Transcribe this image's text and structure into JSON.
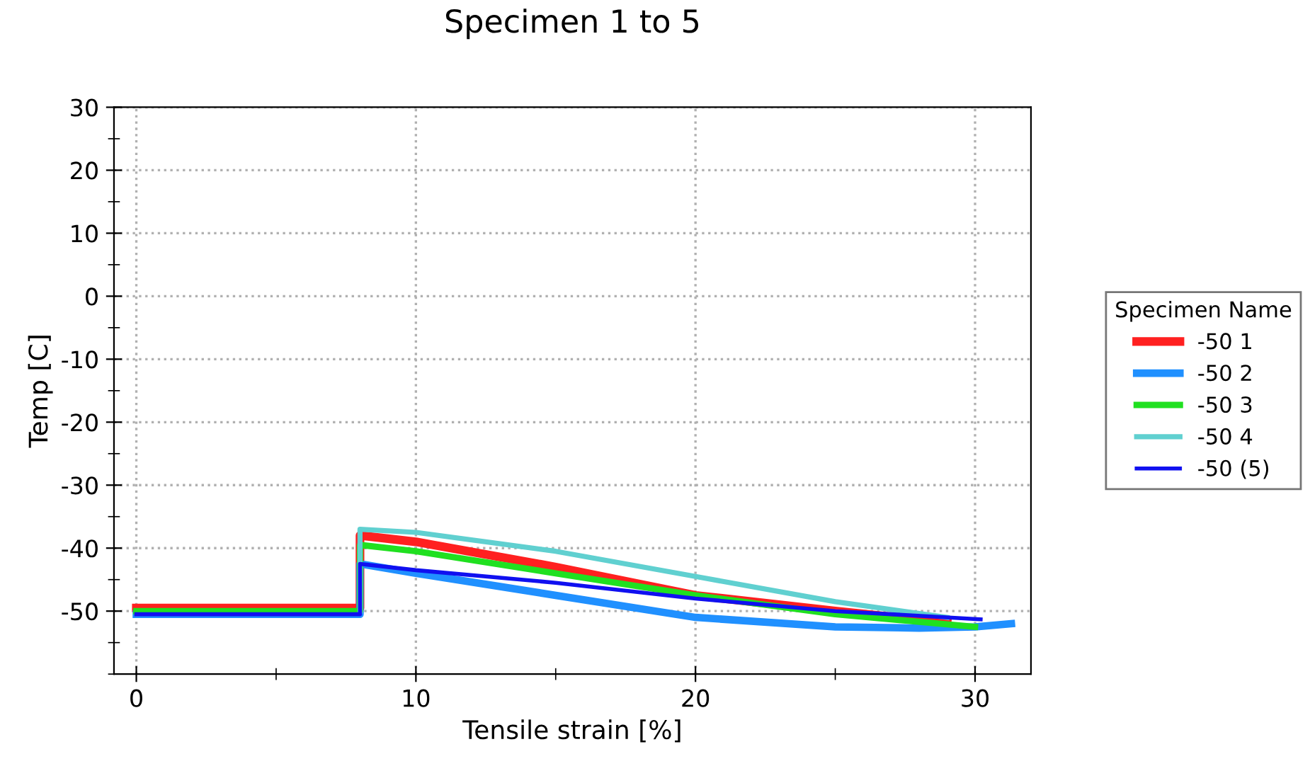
{
  "chart_data": {
    "type": "line",
    "title": "Specimen 1 to 5",
    "xlabel": "Tensile strain [%]",
    "ylabel": "Temp [C]",
    "legend_title": "Specimen Name",
    "xlim": [
      -0.8,
      32
    ],
    "ylim": [
      -60,
      30
    ],
    "xticks": [
      0,
      10,
      20,
      30
    ],
    "yticks": [
      -50,
      -40,
      -30,
      -20,
      -10,
      0,
      10,
      20,
      30
    ],
    "grid": true,
    "legend": "right",
    "line_style": "solid",
    "marker": "none",
    "series": [
      {
        "name": "-50 1",
        "color": "#ff2020",
        "x": [
          0,
          8,
          8,
          10,
          15,
          20,
          25,
          29
        ],
        "values": [
          -49.5,
          -49.5,
          -38,
          -39,
          -43,
          -47.5,
          -50,
          -51.8
        ]
      },
      {
        "name": "-50 2",
        "color": "#2090ff",
        "x": [
          0,
          8,
          8,
          10,
          15,
          20,
          25,
          28,
          30,
          31.3
        ],
        "values": [
          -50.5,
          -50.5,
          -42.5,
          -44,
          -47.5,
          -51,
          -52.5,
          -52.7,
          -52.5,
          -52
        ]
      },
      {
        "name": "-50 3",
        "color": "#20e020",
        "x": [
          0,
          8,
          8,
          10,
          15,
          20,
          25,
          30
        ],
        "values": [
          -50,
          -50,
          -39.5,
          -40.5,
          -44,
          -47.5,
          -50.5,
          -52.5
        ]
      },
      {
        "name": "-50 4",
        "color": "#60d0d0",
        "x": [
          8,
          8,
          10,
          15,
          20,
          25,
          29
        ],
        "values": [
          -50,
          -37,
          -37.5,
          -40.5,
          -44.5,
          -48.5,
          -51
        ]
      },
      {
        "name": "-50 (5)",
        "color": "#1010f0",
        "x": [
          0,
          8,
          8,
          10,
          15,
          20,
          25,
          30.2
        ],
        "values": [
          -50.5,
          -50.5,
          -42.5,
          -43.5,
          -45.5,
          -48,
          -50,
          -51.3
        ]
      }
    ]
  }
}
